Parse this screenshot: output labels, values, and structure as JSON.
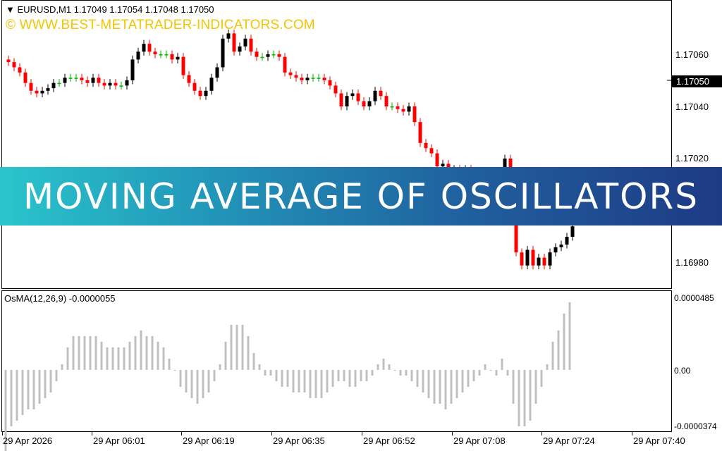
{
  "chart_header": {
    "symbol": "EURUSD,M1",
    "ohlc": "1.17049 1.17054 1.17048 1.17050",
    "watermark": "© WWW.BEST-METATRADER-INDICATORS.COM"
  },
  "banner": {
    "title": "MOVING AVERAGE OF OSCILLATORS"
  },
  "price_axis": {
    "labels": [
      "1.17060",
      "1.17040",
      "1.17020",
      "1.16980"
    ],
    "current_price": "1.17050"
  },
  "oscillator": {
    "title": "OsMA(12,26,9) -0.0000055",
    "axis_labels": [
      "0.0000485",
      "0.00",
      "-0.0000374"
    ]
  },
  "time_axis": {
    "labels": [
      "29 Apr 2026",
      "29 Apr 06:01",
      "29 Apr 06:19",
      "29 Apr 06:35",
      "29 Apr 06:52",
      "29 Apr 07:08",
      "29 Apr 07:24",
      "29 Apr 07:40"
    ]
  },
  "colors": {
    "bull": "#000000",
    "bear": "#ff0000",
    "doji": "#00b400",
    "histogram": "#c0c0c0",
    "watermark": "#f5c400",
    "banner_start": "#2ac4cc",
    "banner_end": "#1e3a85"
  },
  "chart_data": [
    {
      "type": "candlestick",
      "title": "EURUSD,M1",
      "ylim": [
        1.16975,
        1.1707
      ],
      "close": [
        1.17057,
        1.17055,
        1.17053,
        1.17049,
        1.17046,
        1.17045,
        1.17046,
        1.17047,
        1.17049,
        1.17049,
        1.17051,
        1.17051,
        1.17051,
        1.1705,
        1.17049,
        1.17051,
        1.17049,
        1.17048,
        1.17049,
        1.17048,
        1.17048,
        1.1705,
        1.17058,
        1.17061,
        1.17064,
        1.17061,
        1.1706,
        1.1706,
        1.1706,
        1.17058,
        1.17059,
        1.17052,
        1.17049,
        1.17046,
        1.17044,
        1.17046,
        1.17051,
        1.17055,
        1.17066,
        1.17068,
        1.17061,
        1.17063,
        1.17066,
        1.17061,
        1.17059,
        1.17059,
        1.1706,
        1.1706,
        1.17059,
        1.17053,
        1.17052,
        1.17051,
        1.1705,
        1.17051,
        1.17051,
        1.17051,
        1.1705,
        1.17048,
        1.17045,
        1.1704,
        1.17044,
        1.17045,
        1.17042,
        1.1704,
        1.17042,
        1.17046,
        1.17044,
        1.1704,
        1.1704,
        1.17039,
        1.17038,
        1.1704,
        1.17034,
        1.17026,
        1.17024,
        1.17022,
        1.17017,
        1.17018,
        1.17015,
        1.17016,
        1.17015,
        1.17016,
        1.17012,
        1.17008,
        1.17004,
        1.17,
        1.16999,
        1.17002,
        1.1702,
        1.16999,
        1.16984,
        1.16979,
        1.16985,
        1.16979,
        1.16982,
        1.16979,
        1.16984,
        1.16986,
        1.16987,
        1.1699,
        1.16994
      ],
      "osma": [
        -15,
        -10,
        -9,
        -8,
        -7,
        -7,
        -6,
        -5,
        -4,
        -2,
        1,
        4,
        6,
        6,
        6,
        6,
        6,
        5,
        4,
        4,
        4,
        4,
        5,
        6,
        7,
        6,
        6,
        5,
        4,
        2,
        0,
        -3,
        -4,
        -5,
        -6,
        -5,
        -4,
        -2,
        1,
        5,
        8,
        8,
        8,
        6,
        3,
        1,
        -1,
        -1,
        -2,
        -3,
        -3,
        -4,
        -4,
        -4,
        -5,
        -5,
        -5,
        -4,
        -3,
        -2,
        -2,
        -3,
        -3,
        -2,
        -2,
        -1,
        1,
        2,
        1,
        0,
        -1,
        -1,
        -2,
        -3,
        -4,
        -5,
        -6,
        -6,
        -7,
        -6,
        -5,
        -4,
        -3,
        -2,
        -1,
        1,
        0,
        -1,
        2,
        -1,
        -6,
        -10,
        -10,
        -9,
        -6,
        -3,
        1,
        5,
        7,
        10,
        12
      ]
    }
  ]
}
